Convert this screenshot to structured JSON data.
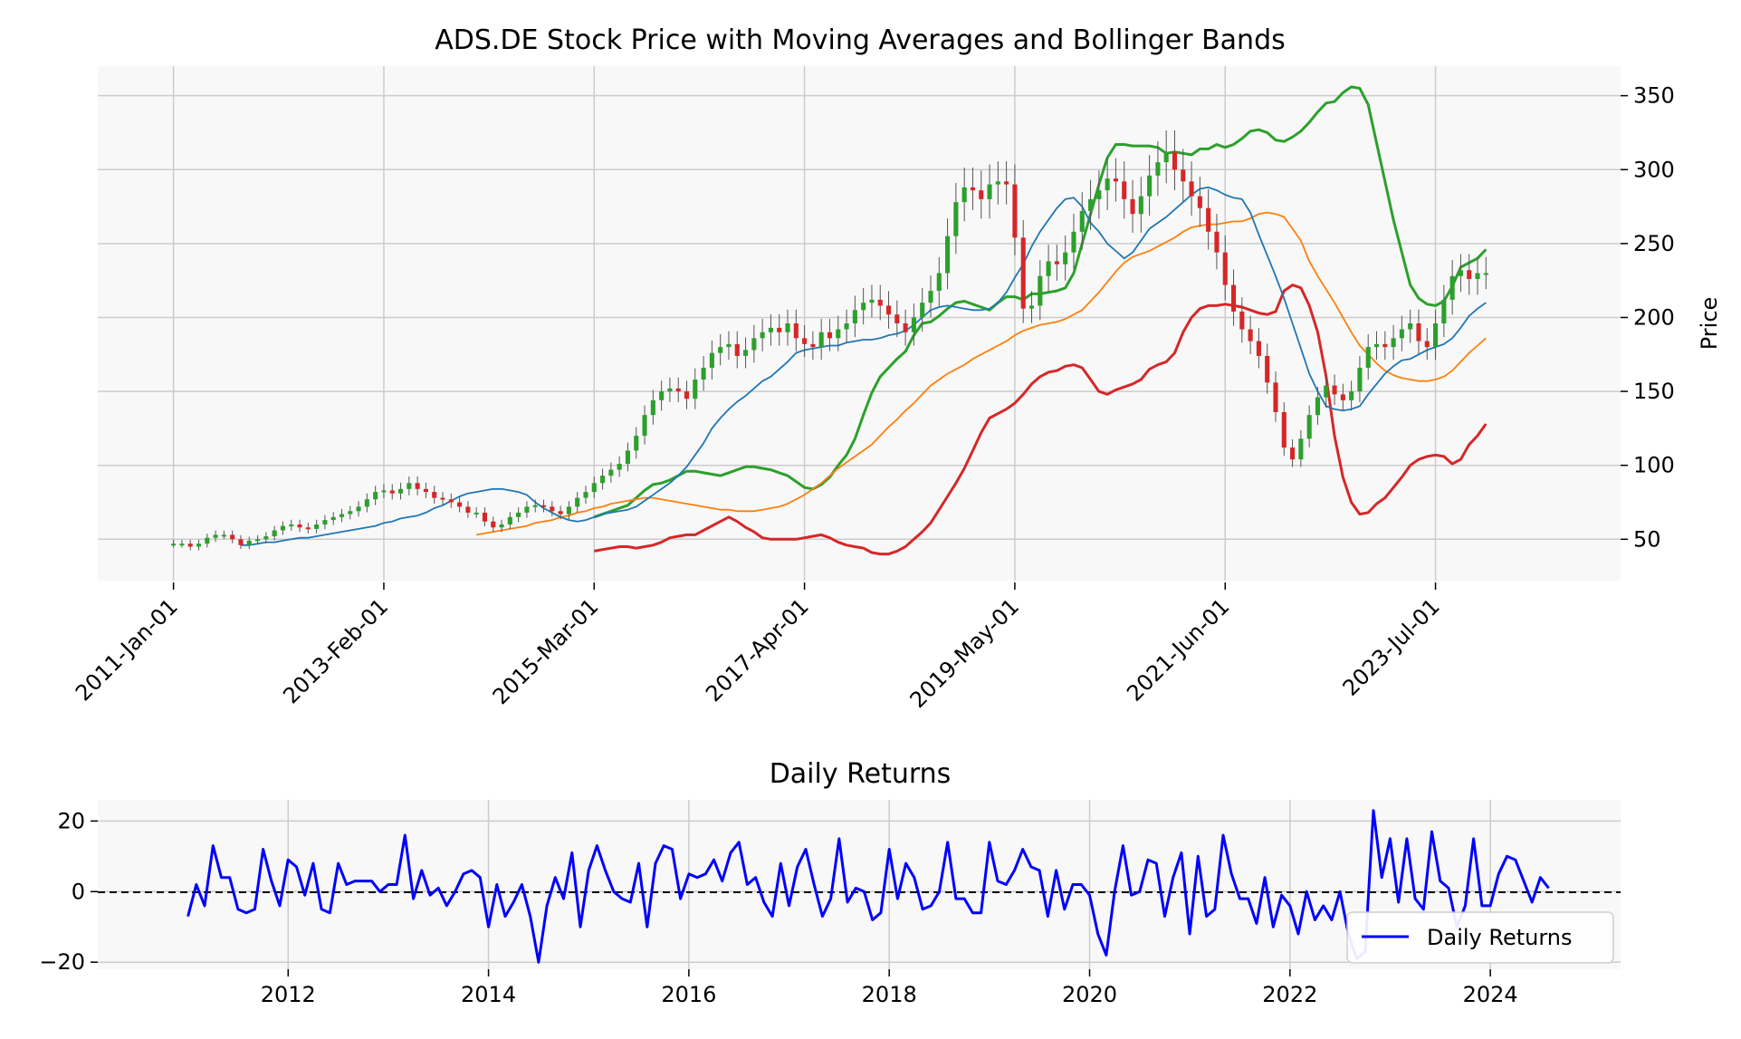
{
  "chart_data": [
    {
      "type": "candlestick",
      "title": "ADS.DE Stock Price with Moving Averages and Bollinger Bands",
      "xlabel": "",
      "ylabel": "Price",
      "ylim": [
        22,
        370
      ],
      "y_ticks": [
        50,
        100,
        150,
        200,
        250,
        300,
        350
      ],
      "x_tick_labels": [
        "2011-Jan-01",
        "2013-Feb-01",
        "2015-Mar-01",
        "2017-Apr-01",
        "2019-May-01",
        "2021-Jun-01",
        "2023-Jul-01"
      ],
      "x_tick_months": [
        0,
        25,
        50,
        75,
        100,
        125,
        150
      ],
      "x_range_months": [
        -9,
        172
      ],
      "grid": true,
      "colors": {
        "up": "#2ca02c",
        "down": "#d62728",
        "ma_short": "#1f77b4",
        "ma_long": "#ff7f0e",
        "band_upper": "#2ca02c",
        "band_lower": "#d62728"
      },
      "close_monthly_start": "2011-01",
      "close": [
        47,
        47,
        45,
        47,
        51,
        53,
        53,
        50,
        46,
        49,
        50,
        52,
        56,
        59,
        60,
        58,
        57,
        60,
        63,
        65,
        67,
        69,
        72,
        77,
        82,
        83,
        81,
        84,
        88,
        84,
        82,
        78,
        77,
        75,
        72,
        68,
        68,
        62,
        58,
        60,
        65,
        68,
        72,
        73,
        72,
        69,
        67,
        72,
        78,
        82,
        88,
        93,
        97,
        101,
        110,
        120,
        134,
        144,
        150,
        152,
        150,
        145,
        158,
        166,
        176,
        180,
        182,
        174,
        178,
        186,
        190,
        193,
        190,
        196,
        186,
        182,
        180,
        190,
        186,
        192,
        196,
        205,
        210,
        212,
        208,
        202,
        196,
        190,
        200,
        210,
        218,
        230,
        255,
        278,
        288,
        286,
        280,
        290,
        292,
        290,
        254,
        206,
        208,
        228,
        238,
        236,
        244,
        258,
        272,
        280,
        286,
        294,
        292,
        280,
        270,
        282,
        296,
        305,
        312,
        300,
        292,
        282,
        274,
        258,
        244,
        222,
        204,
        192,
        184,
        174,
        156,
        136,
        112,
        104,
        118,
        134,
        146,
        154,
        148,
        144,
        150,
        166,
        180,
        182,
        180,
        186,
        192,
        196,
        184,
        180,
        196,
        212,
        228,
        232,
        226,
        230,
        230
      ],
      "ma_short_values": [
        46,
        46,
        47,
        48,
        48,
        49,
        50,
        51,
        51,
        52,
        53,
        54,
        55,
        56,
        57,
        58,
        59,
        61,
        62,
        64,
        65,
        66,
        68,
        71,
        73,
        76,
        79,
        81,
        82,
        83,
        84,
        84,
        83,
        82,
        80,
        75,
        71,
        68,
        65,
        63,
        62,
        63,
        65,
        67,
        68,
        69,
        70,
        72,
        76,
        80,
        84,
        88,
        93,
        99,
        107,
        115,
        125,
        132,
        138,
        143,
        147,
        152,
        157,
        160,
        165,
        170,
        176,
        178,
        179,
        180,
        181,
        181,
        183,
        184,
        185,
        185,
        186,
        188,
        189,
        191,
        195,
        200,
        205,
        207,
        208,
        207,
        206,
        205,
        205,
        206,
        210,
        217,
        227,
        236,
        248,
        258,
        266,
        274,
        280,
        281,
        275,
        264,
        258,
        250,
        245,
        240,
        244,
        252,
        260,
        264,
        268,
        273,
        278,
        283,
        287,
        288,
        286,
        283,
        281,
        280,
        271,
        256,
        242,
        228,
        213,
        196,
        179,
        162,
        150,
        140,
        138,
        137,
        138,
        140,
        148,
        155,
        162,
        167,
        171,
        172,
        175,
        178,
        180,
        182,
        186,
        193,
        201,
        206,
        210
      ],
      "ma_long_values": [
        53,
        54,
        55,
        56,
        57,
        58,
        59,
        61,
        62,
        63,
        65,
        66,
        68,
        69,
        71,
        72,
        74,
        75,
        76,
        77,
        78,
        78,
        77,
        76,
        75,
        74,
        73,
        72,
        71,
        70,
        70,
        69,
        69,
        69,
        70,
        71,
        72,
        74,
        77,
        80,
        84,
        88,
        93,
        98,
        102,
        106,
        110,
        114,
        120,
        126,
        131,
        137,
        142,
        148,
        154,
        158,
        162,
        165,
        168,
        172,
        175,
        178,
        181,
        184,
        188,
        191,
        193,
        195,
        196,
        197,
        199,
        202,
        205,
        211,
        217,
        224,
        231,
        237,
        241,
        243,
        245,
        248,
        251,
        254,
        258,
        261,
        262,
        263,
        263,
        264,
        265,
        265,
        267,
        270,
        271,
        270,
        268,
        260,
        252,
        238,
        228,
        219,
        210,
        200,
        190,
        181,
        175,
        169,
        164,
        161,
        159,
        158,
        157,
        157,
        158,
        160,
        164,
        170,
        176,
        181,
        186
      ],
      "band_upper_values": [
        65,
        67,
        69,
        71,
        73,
        78,
        83,
        87,
        88,
        90,
        93,
        96,
        96,
        95,
        94,
        93,
        95,
        97,
        99,
        99,
        98,
        97,
        95,
        93,
        89,
        85,
        84,
        87,
        92,
        100,
        107,
        118,
        134,
        149,
        160,
        166,
        172,
        177,
        188,
        196,
        197,
        201,
        206,
        210,
        211,
        209,
        207,
        205,
        210,
        214,
        214,
        212,
        216,
        216,
        217,
        218,
        220,
        230,
        250,
        270,
        290,
        308,
        317,
        317,
        316,
        316,
        316,
        315,
        311,
        312,
        311,
        310,
        314,
        314,
        317,
        315,
        317,
        321,
        326,
        327,
        325,
        320,
        319,
        322,
        326,
        332,
        339,
        345,
        346,
        352,
        356,
        355,
        344,
        318,
        292,
        266,
        244,
        222,
        213,
        209,
        208,
        211,
        221,
        234,
        237,
        240,
        246
      ],
      "band_lower_values": [
        42,
        43,
        44,
        45,
        45,
        44,
        45,
        46,
        48,
        51,
        52,
        53,
        53,
        56,
        59,
        62,
        65,
        62,
        58,
        55,
        51,
        50,
        50,
        50,
        50,
        51,
        52,
        53,
        51,
        48,
        46,
        45,
        44,
        41,
        40,
        40,
        42,
        45,
        50,
        55,
        61,
        70,
        79,
        88,
        98,
        110,
        122,
        132,
        135,
        138,
        142,
        148,
        155,
        160,
        163,
        164,
        167,
        168,
        166,
        158,
        150,
        148,
        151,
        153,
        155,
        158,
        165,
        168,
        170,
        176,
        190,
        200,
        206,
        208,
        208,
        209,
        208,
        207,
        205,
        203,
        202,
        204,
        218,
        222,
        220,
        208,
        190,
        160,
        120,
        92,
        75,
        67,
        68,
        74,
        78,
        85,
        92,
        100,
        104,
        106,
        107,
        106,
        101,
        104,
        114,
        120,
        128
      ]
    },
    {
      "type": "line",
      "title": "Daily Returns",
      "xlabel": "",
      "ylabel": "",
      "ylim": [
        -22,
        26
      ],
      "y_ticks": [
        -20,
        0,
        20
      ],
      "y_tick_labels": [
        "−20",
        "0",
        "20"
      ],
      "xlim": [
        2010.1,
        2025.3
      ],
      "x_ticks": [
        2012,
        2014,
        2016,
        2018,
        2020,
        2022,
        2024
      ],
      "grid": true,
      "reference_line": 0,
      "legend": "bottom-right",
      "series": [
        {
          "name": "Daily Returns",
          "color": "#0000ff",
          "x_start": 2011.0,
          "x_step": 0.08333,
          "values": [
            -7,
            2,
            -4,
            13,
            4,
            4,
            -5,
            -6,
            -5,
            12,
            3,
            -4,
            9,
            7,
            -1,
            8,
            -5,
            -6,
            8,
            2,
            3,
            3,
            3,
            0,
            2,
            2,
            16,
            -2,
            6,
            -1,
            1,
            -4,
            0,
            5,
            6,
            4,
            -10,
            2,
            -7,
            -3,
            2,
            -7,
            -20,
            -4,
            4,
            -2,
            11,
            -10,
            6,
            13,
            6,
            0,
            -2,
            -3,
            8,
            -10,
            8,
            13,
            12,
            -2,
            5,
            4,
            5,
            9,
            3,
            11,
            14,
            2,
            4,
            -3,
            -7,
            8,
            -4,
            7,
            12,
            2,
            -7,
            -2,
            15,
            -3,
            1,
            0,
            -8,
            -6,
            12,
            -2,
            8,
            4,
            -5,
            -4,
            0,
            14,
            -2,
            -2,
            -6,
            -6,
            14,
            3,
            2,
            6,
            12,
            7,
            6,
            -7,
            6,
            -5,
            2,
            2,
            -1,
            -12,
            -18,
            0,
            13,
            -1,
            0,
            9,
            8,
            -7,
            4,
            11,
            -12,
            10,
            -7,
            -5,
            16,
            5,
            -2,
            -2,
            -9,
            4,
            -10,
            -1,
            -4,
            -12,
            0,
            -8,
            -4,
            -8,
            0,
            -12,
            -19,
            -17,
            23,
            4,
            15,
            -3,
            15,
            -2,
            -5,
            17,
            3,
            1,
            -10,
            -4,
            15,
            -4,
            -4,
            5,
            10,
            9,
            3,
            -3,
            4,
            1
          ]
        }
      ]
    }
  ]
}
